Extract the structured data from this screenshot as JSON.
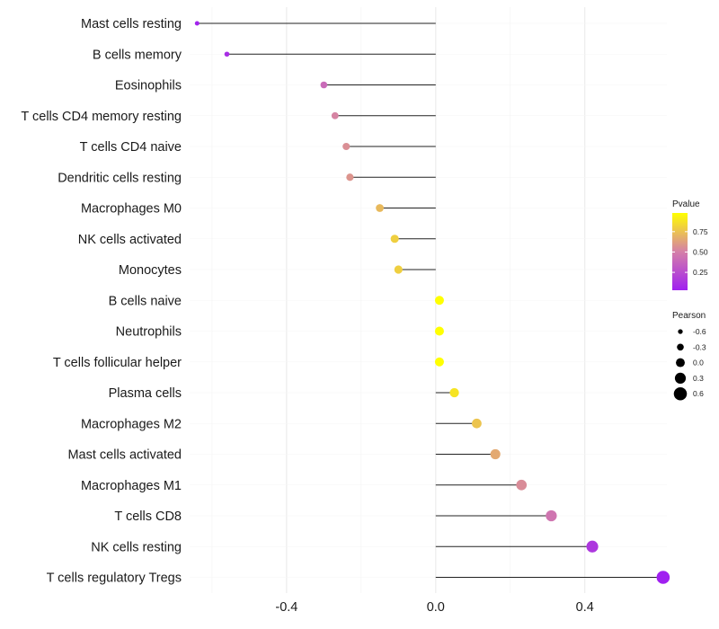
{
  "chart_data": {
    "type": "lollipop",
    "title": "",
    "xlabel": "",
    "ylabel": "",
    "xlim": [
      -0.66,
      0.62
    ],
    "xticks": [
      -0.4,
      0.0,
      0.4
    ],
    "xtick_labels": [
      "-0.4",
      "0.0",
      "0.4"
    ],
    "grid": true,
    "categories": [
      "Mast cells resting",
      "B cells memory",
      "Eosinophils",
      "T cells CD4 memory resting",
      "T cells CD4 naive",
      "Dendritic cells resting",
      "Macrophages M0",
      "NK cells activated",
      "Monocytes",
      "B cells naive",
      "Neutrophils",
      "T cells follicular helper",
      "Plasma cells",
      "Macrophages M2",
      "Mast cells activated",
      "Macrophages M1",
      "T cells CD8",
      "NK cells resting",
      "T cells regulatory  Tregs"
    ],
    "pearson": [
      -0.64,
      -0.56,
      -0.3,
      -0.27,
      -0.24,
      -0.23,
      -0.15,
      -0.11,
      -0.1,
      0.01,
      0.01,
      0.01,
      0.05,
      0.11,
      0.16,
      0.23,
      0.31,
      0.42,
      0.61
    ],
    "pvalue": [
      0.05,
      0.1,
      0.4,
      0.52,
      0.56,
      0.58,
      0.72,
      0.8,
      0.8,
      0.98,
      0.98,
      0.98,
      0.88,
      0.76,
      0.66,
      0.55,
      0.45,
      0.15,
      0.03
    ],
    "legend": {
      "color": {
        "title": "Pvalue",
        "breaks": [
          0.25,
          0.5,
          0.75
        ],
        "labels": [
          "0.25",
          "0.50",
          "0.75"
        ],
        "range": [
          0.03,
          0.98
        ],
        "low_color": "#a020f0",
        "mid_color": "#d580a8",
        "high_color": "#ffff00"
      },
      "size": {
        "title": "Pearson",
        "breaks": [
          -0.6,
          -0.3,
          0.0,
          0.3,
          0.6
        ],
        "labels": [
          "-0.6",
          "-0.3",
          "0.0",
          "0.3",
          "0.6"
        ]
      },
      "placement": "right"
    }
  }
}
